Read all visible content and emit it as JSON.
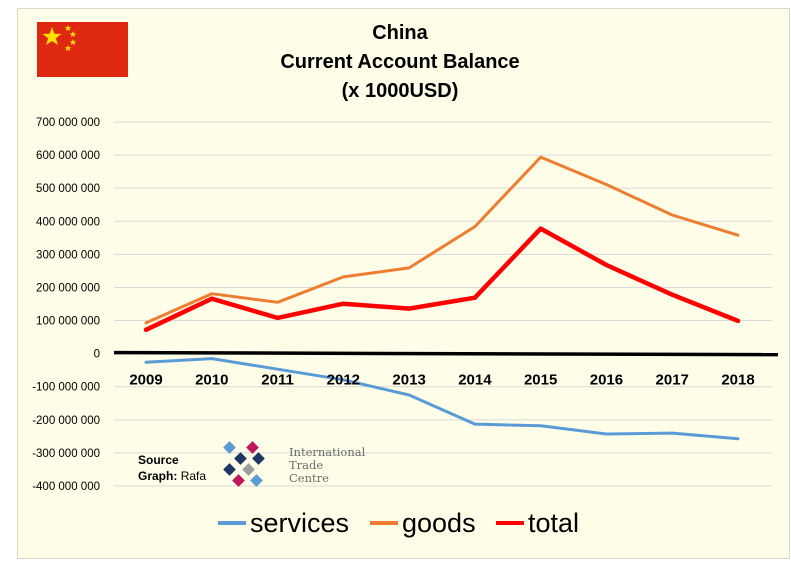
{
  "chart_data": {
    "type": "line",
    "title": [
      "China",
      "Current Account Balance",
      "(x 1000USD)"
    ],
    "categories": [
      "2009",
      "2010",
      "2011",
      "2012",
      "2013",
      "2014",
      "2015",
      "2016",
      "2017",
      "2018"
    ],
    "ylim": [
      -400000000,
      700000000
    ],
    "yticks": [
      700000000,
      600000000,
      500000000,
      400000000,
      300000000,
      200000000,
      100000000,
      0,
      -100000000,
      -200000000,
      -300000000,
      -400000000
    ],
    "ytick_labels": [
      "700 000 000",
      "600 000 000",
      "500 000 000",
      "400 000 000",
      "300 000 000",
      "200 000 000",
      "100 000 000",
      "0",
      "-100 000 000",
      "-200 000 000",
      "-300 000 000",
      "-400 000 000"
    ],
    "grid": true,
    "legend": "bottom",
    "series": [
      {
        "name": "services",
        "color": "#5b9bd5",
        "values": [
          -26000000,
          -15000000,
          -47000000,
          -79000000,
          -125000000,
          -213000000,
          -218000000,
          -243000000,
          -240000000,
          -257000000
        ]
      },
      {
        "name": "goods",
        "color": "#ed7d31",
        "values": [
          93000000,
          181000000,
          155000000,
          232000000,
          259000000,
          384000000,
          594000000,
          511000000,
          419000000,
          358000000
        ]
      },
      {
        "name": "total",
        "color": "#ff0000",
        "values": [
          72000000,
          166000000,
          108000000,
          151000000,
          136000000,
          169000000,
          378000000,
          268000000,
          178000000,
          99000000
        ]
      }
    ]
  },
  "source": {
    "label": "Source",
    "graph_label": "Graph:",
    "graph_author": "Rafa",
    "logo_lines": [
      "International",
      "Trade",
      "Centre"
    ]
  },
  "colors": {
    "flag_red": "#de2910",
    "flag_yellow": "#ffde00",
    "background": "#fefde8"
  }
}
